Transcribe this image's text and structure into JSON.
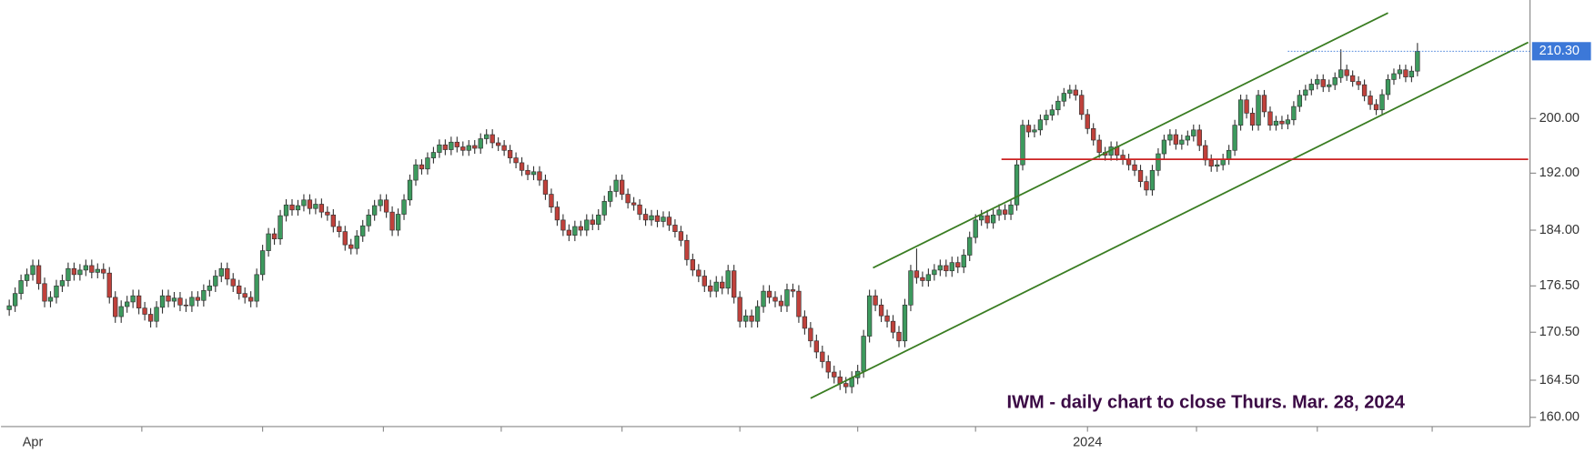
{
  "chart_data": {
    "type": "candlestick",
    "annotation": "IWM - daily chart to close Thurs. Mar. 28, 2024",
    "up_color": "#3d9a5e",
    "down_color": "#c0413b",
    "log_scale": true,
    "ylim": [
      158.9,
      218.5
    ],
    "yticks": [
      {
        "value": 160,
        "label": "160.00"
      },
      {
        "value": 164.5,
        "label": "164.50"
      },
      {
        "value": 170.5,
        "label": "170.50"
      },
      {
        "value": 176.5,
        "label": "176.50"
      },
      {
        "value": 184,
        "label": "184.00"
      },
      {
        "value": 192,
        "label": "192.00"
      },
      {
        "value": 200,
        "label": "200.00"
      }
    ],
    "last_price": {
      "value": 210.3,
      "label": "210.30",
      "from": 217,
      "color": "#3c78d8"
    },
    "xlim": [
      -1.4,
      258.1
    ],
    "xticks": [
      22.5,
      43,
      63.5,
      83.5,
      104,
      124,
      144,
      164,
      183,
      201.5,
      222,
      241.5
    ],
    "trendlines": [
      {
        "color": "#3a7d22",
        "points": [
          [
            146.6,
            178.9
          ],
          [
            234,
            216.4
          ]
        ]
      },
      {
        "color": "#3a7d22",
        "points": [
          [
            136,
            162.3
          ],
          [
            257.8,
            211.7
          ]
        ]
      },
      {
        "color": "#cc2222",
        "points": [
          [
            168.4,
            194
          ],
          [
            257.8,
            194
          ]
        ]
      }
    ],
    "categories": [
      null,
      null,
      null,
      null,
      "Apr",
      null,
      null,
      null,
      null,
      null,
      null,
      null,
      null,
      null,
      null,
      null,
      null,
      null,
      null,
      null,
      null,
      null,
      null,
      null,
      null,
      null,
      null,
      null,
      null,
      null,
      null,
      null,
      null,
      null,
      null,
      null,
      null,
      null,
      null,
      null,
      null,
      null,
      null,
      null,
      null,
      null,
      null,
      null,
      null,
      null,
      null,
      null,
      null,
      null,
      null,
      null,
      null,
      null,
      null,
      null,
      null,
      null,
      null,
      null,
      null,
      null,
      null,
      null,
      null,
      null,
      null,
      null,
      null,
      null,
      null,
      null,
      null,
      null,
      null,
      null,
      null,
      null,
      null,
      null,
      null,
      null,
      null,
      null,
      null,
      null,
      null,
      null,
      null,
      null,
      null,
      null,
      null,
      null,
      null,
      null,
      null,
      null,
      null,
      null,
      null,
      null,
      null,
      null,
      null,
      null,
      null,
      null,
      null,
      null,
      null,
      null,
      null,
      null,
      null,
      null,
      null,
      null,
      null,
      null,
      null,
      null,
      null,
      null,
      null,
      null,
      null,
      null,
      null,
      null,
      null,
      null,
      null,
      null,
      null,
      null,
      null,
      null,
      null,
      null,
      null,
      null,
      null,
      null,
      null,
      null,
      null,
      null,
      null,
      null,
      null,
      null,
      null,
      null,
      null,
      null,
      null,
      null,
      null,
      null,
      null,
      null,
      null,
      null,
      null,
      null,
      null,
      null,
      null,
      null,
      null,
      null,
      null,
      null,
      null,
      null,
      null,
      null,
      null,
      "2024",
      null,
      null,
      null,
      null,
      null,
      null,
      null,
      null,
      null,
      null,
      null,
      null,
      null,
      null,
      null,
      null,
      null,
      null,
      null,
      null,
      null,
      null,
      null,
      null,
      null,
      null,
      null,
      null,
      null,
      null,
      null,
      null,
      null,
      null,
      null,
      null,
      null,
      null,
      null,
      null,
      null,
      null,
      null,
      null,
      null,
      null,
      null,
      null,
      null,
      null,
      null,
      null,
      null,
      null,
      null,
      null
    ],
    "open": [
      173.4,
      173.9,
      175.5,
      177.2,
      178.0,
      179.2,
      176.8,
      174.5,
      175.0,
      176.5,
      177.2,
      178.8,
      178.0,
      178.6,
      179.2,
      178.3,
      178.7,
      178.2,
      175.0,
      172.5,
      173.8,
      174.4,
      175.2,
      173.6,
      172.8,
      171.9,
      173.7,
      175.2,
      174.5,
      174.9,
      174.0,
      173.9,
      175.0,
      174.6,
      175.9,
      176.5,
      177.8,
      178.8,
      177.4,
      176.5,
      175.5,
      175.0,
      174.5,
      178.0,
      181.2,
      183.5,
      182.8,
      186.0,
      187.5,
      186.8,
      187.4,
      188.2,
      187.0,
      187.6,
      186.5,
      186.1,
      184.5,
      183.8,
      182.0,
      181.5,
      183.2,
      184.6,
      186.1,
      187.4,
      188.2,
      186.5,
      184.0,
      186.2,
      188.2,
      191.0,
      193.2,
      192.6,
      194.2,
      195.0,
      196.1,
      195.4,
      196.5,
      195.8,
      195.3,
      196.0,
      195.6,
      197.0,
      197.6,
      196.4,
      196.0,
      195.3,
      194.2,
      193.5,
      192.4,
      191.8,
      192.2,
      191.0,
      189.0,
      187.2,
      185.4,
      184.0,
      183.3,
      184.5,
      184.0,
      185.4,
      184.8,
      186.1,
      188.0,
      189.4,
      191.0,
      189.0,
      187.8,
      187.5,
      186.2,
      185.4,
      186.0,
      185.2,
      185.8,
      184.7,
      183.8,
      182.6,
      180.0,
      178.6,
      177.8,
      176.5,
      175.8,
      177.0,
      176.2,
      178.5,
      175.0,
      171.9,
      172.6,
      171.9,
      173.8,
      175.8,
      175.0,
      174.5,
      173.9,
      176.0,
      175.8,
      172.5,
      171.0,
      169.4,
      168.0,
      166.8,
      165.5,
      164.9,
      164.1,
      163.7,
      164.8,
      165.6,
      170.0,
      175.2,
      174.0,
      172.6,
      171.9,
      170.5,
      169.4,
      174.0,
      178.5,
      177.6,
      177.2,
      178.0,
      178.6,
      179.2,
      178.5,
      179.6,
      179.0,
      180.6,
      183.0,
      185.4,
      186.0,
      185.0,
      186.1,
      186.8,
      186.2,
      187.5,
      193.2,
      199.0,
      198.0,
      198.3,
      199.8,
      200.5,
      201.3,
      202.6,
      203.8,
      204.3,
      203.5,
      200.6,
      198.5,
      196.8,
      195.0,
      194.6,
      195.8,
      194.6,
      194.0,
      193.2,
      192.4,
      190.8,
      189.6,
      192.4,
      194.8,
      196.8,
      197.6,
      196.2,
      196.8,
      197.4,
      198.3,
      196.0,
      193.9,
      193.0,
      193.2,
      194.0,
      195.3,
      199.0,
      202.8,
      200.8,
      199.0,
      203.5,
      201.0,
      199.0,
      199.6,
      199.2,
      199.8,
      201.8,
      203.5,
      204.3,
      205.2,
      205.9,
      204.8,
      205.1,
      206.2,
      207.4,
      206.5,
      205.6,
      205.1,
      203.4,
      202.1,
      201.3,
      203.6,
      205.9,
      206.8,
      207.4,
      206.3,
      207.2
    ],
    "high": [
      174.7,
      176.3,
      178.0,
      178.8,
      180.0,
      180.0,
      177.6,
      175.8,
      177.3,
      178.0,
      179.6,
      179.6,
      179.4,
      180.0,
      180.0,
      179.5,
      179.5,
      179.0,
      175.8,
      174.6,
      175.2,
      176.0,
      176.0,
      174.4,
      173.6,
      174.5,
      176.0,
      176.0,
      175.7,
      175.7,
      174.8,
      175.8,
      175.8,
      176.7,
      177.3,
      178.6,
      179.6,
      179.6,
      178.2,
      177.3,
      176.3,
      175.8,
      178.8,
      182.0,
      184.3,
      184.3,
      186.8,
      188.3,
      188.3,
      188.2,
      189.0,
      189.0,
      188.4,
      188.4,
      187.3,
      186.9,
      185.3,
      184.6,
      182.8,
      184.0,
      185.4,
      186.9,
      188.2,
      189.0,
      189.0,
      187.3,
      187.0,
      189.0,
      191.8,
      194.0,
      194.0,
      195.0,
      195.8,
      196.9,
      196.9,
      197.3,
      197.3,
      196.6,
      196.8,
      196.8,
      197.8,
      198.4,
      198.4,
      197.2,
      196.8,
      196.1,
      195.0,
      194.3,
      193.2,
      193.0,
      193.0,
      191.8,
      189.8,
      188.0,
      186.2,
      184.8,
      185.3,
      185.3,
      186.2,
      186.2,
      186.9,
      188.8,
      190.2,
      191.8,
      191.8,
      189.8,
      188.6,
      188.3,
      187.0,
      186.8,
      186.8,
      186.6,
      186.6,
      185.5,
      184.6,
      183.4,
      180.8,
      179.4,
      178.6,
      177.3,
      177.8,
      177.8,
      179.3,
      179.3,
      175.8,
      173.4,
      173.4,
      174.6,
      176.6,
      176.6,
      175.8,
      175.3,
      176.8,
      176.8,
      176.6,
      173.3,
      171.8,
      170.2,
      168.8,
      167.6,
      166.3,
      165.7,
      164.9,
      165.6,
      166.4,
      170.8,
      176.0,
      176.0,
      174.8,
      173.4,
      172.7,
      171.3,
      174.8,
      179.3,
      181.5,
      178.4,
      178.8,
      179.4,
      180.0,
      180.0,
      180.4,
      180.4,
      181.4,
      183.8,
      186.2,
      186.8,
      186.8,
      186.9,
      187.6,
      187.6,
      188.3,
      194.0,
      199.8,
      199.8,
      199.1,
      200.6,
      201.3,
      202.1,
      203.4,
      204.6,
      205.1,
      205.1,
      204.3,
      201.4,
      199.3,
      197.6,
      195.8,
      196.6,
      196.6,
      195.4,
      194.8,
      194.0,
      193.2,
      191.6,
      193.2,
      195.6,
      197.6,
      198.4,
      198.4,
      197.6,
      198.2,
      199.1,
      199.1,
      196.8,
      194.7,
      194.0,
      194.8,
      196.1,
      199.8,
      203.6,
      203.6,
      201.6,
      204.3,
      204.3,
      201.8,
      200.4,
      200.4,
      200.6,
      202.6,
      204.3,
      205.1,
      206.0,
      206.7,
      206.7,
      205.9,
      207.0,
      210.6,
      208.2,
      207.3,
      206.4,
      205.9,
      204.2,
      202.9,
      204.4,
      206.7,
      207.6,
      208.2,
      208.2,
      208.0,
      211.6
    ],
    "low": [
      172.6,
      173.1,
      174.7,
      176.4,
      177.2,
      176.0,
      173.7,
      173.7,
      174.2,
      175.7,
      176.4,
      177.2,
      177.2,
      177.8,
      177.5,
      177.5,
      177.4,
      174.2,
      171.7,
      171.7,
      173.0,
      173.6,
      172.8,
      172.0,
      171.1,
      171.1,
      172.9,
      173.7,
      173.7,
      173.2,
      173.1,
      173.1,
      173.8,
      173.8,
      175.1,
      175.7,
      177.0,
      176.6,
      175.7,
      174.7,
      174.2,
      173.7,
      173.7,
      177.2,
      180.4,
      182.0,
      182.0,
      185.2,
      186.0,
      186.0,
      186.6,
      186.2,
      186.2,
      185.7,
      185.3,
      183.7,
      183.0,
      181.2,
      180.7,
      180.7,
      182.4,
      183.8,
      185.3,
      186.6,
      185.7,
      183.2,
      183.2,
      185.4,
      187.4,
      190.2,
      191.8,
      191.8,
      193.4,
      194.2,
      194.6,
      194.6,
      195.0,
      194.5,
      194.5,
      194.8,
      194.8,
      196.2,
      195.6,
      195.2,
      194.5,
      193.4,
      192.7,
      191.6,
      191.0,
      191.0,
      190.2,
      188.2,
      186.4,
      184.6,
      183.2,
      182.5,
      182.5,
      183.2,
      183.2,
      184.0,
      184.0,
      185.3,
      187.2,
      188.6,
      188.2,
      187.0,
      186.7,
      185.4,
      184.6,
      184.6,
      184.4,
      184.4,
      183.9,
      183.0,
      181.8,
      179.2,
      177.8,
      177.0,
      175.7,
      175.0,
      175.0,
      175.4,
      175.4,
      174.2,
      171.1,
      171.1,
      171.1,
      171.1,
      173.0,
      174.2,
      173.7,
      173.1,
      173.1,
      175.0,
      171.7,
      170.2,
      168.6,
      167.2,
      166.0,
      164.7,
      164.1,
      163.3,
      162.9,
      162.9,
      164.0,
      164.8,
      169.2,
      173.2,
      171.8,
      171.1,
      169.7,
      168.6,
      168.6,
      173.2,
      176.8,
      176.4,
      176.4,
      177.2,
      177.8,
      177.7,
      177.7,
      178.2,
      178.2,
      179.8,
      182.2,
      184.6,
      184.2,
      184.2,
      185.3,
      185.4,
      185.4,
      186.7,
      192.4,
      197.2,
      197.2,
      197.5,
      199.0,
      199.7,
      200.5,
      201.8,
      203.0,
      202.7,
      199.8,
      197.7,
      196.0,
      194.2,
      193.8,
      193.8,
      193.8,
      193.2,
      192.4,
      191.6,
      190.0,
      188.8,
      188.8,
      191.6,
      194.0,
      196.0,
      195.4,
      195.4,
      196.0,
      196.6,
      195.2,
      193.1,
      192.2,
      192.2,
      192.4,
      193.2,
      194.5,
      198.2,
      200.0,
      198.2,
      198.2,
      200.2,
      198.2,
      198.2,
      198.4,
      198.4,
      199.0,
      201.0,
      202.7,
      203.5,
      204.4,
      204.0,
      204.0,
      204.3,
      205.4,
      205.7,
      204.8,
      204.3,
      202.6,
      201.3,
      200.5,
      200.5,
      202.8,
      205.1,
      206.0,
      205.5,
      205.5,
      206.4
    ],
    "close": [
      173.9,
      175.5,
      177.2,
      178.0,
      179.2,
      176.8,
      174.5,
      175.0,
      176.5,
      177.2,
      178.8,
      178.0,
      178.6,
      179.2,
      178.3,
      178.7,
      178.2,
      175.0,
      172.5,
      173.8,
      174.4,
      175.2,
      173.6,
      172.8,
      171.9,
      173.7,
      175.2,
      174.5,
      174.9,
      174.0,
      173.9,
      175.0,
      174.6,
      175.9,
      176.5,
      177.8,
      178.8,
      177.4,
      176.5,
      175.5,
      175.0,
      174.5,
      178.0,
      181.2,
      183.5,
      182.8,
      186.0,
      187.5,
      186.8,
      187.4,
      188.2,
      187.0,
      187.6,
      186.5,
      186.1,
      184.5,
      183.8,
      182.0,
      181.5,
      183.2,
      184.6,
      186.1,
      187.4,
      188.2,
      186.5,
      184.0,
      186.2,
      188.2,
      191.0,
      193.2,
      192.6,
      194.2,
      195.0,
      196.1,
      195.4,
      196.5,
      195.8,
      195.3,
      196.0,
      195.6,
      197.0,
      197.6,
      196.4,
      196.0,
      195.3,
      194.2,
      193.5,
      192.4,
      191.8,
      192.2,
      191.0,
      189.0,
      187.2,
      185.4,
      184.0,
      183.3,
      184.5,
      184.0,
      185.4,
      184.8,
      186.1,
      188.0,
      189.4,
      191.0,
      189.0,
      187.8,
      187.5,
      186.2,
      185.4,
      186.0,
      185.2,
      185.8,
      184.7,
      183.8,
      182.6,
      180.0,
      178.6,
      177.8,
      176.5,
      175.8,
      177.0,
      176.2,
      178.5,
      175.0,
      171.9,
      172.6,
      171.9,
      173.8,
      175.8,
      175.0,
      174.5,
      173.9,
      176.0,
      175.8,
      172.5,
      171.0,
      169.4,
      168.0,
      166.8,
      165.5,
      164.9,
      164.1,
      163.7,
      164.8,
      165.6,
      170.0,
      175.2,
      174.0,
      172.6,
      171.9,
      170.5,
      169.4,
      174.0,
      178.5,
      177.6,
      177.2,
      178.0,
      178.6,
      179.2,
      178.5,
      179.6,
      179.0,
      180.6,
      183.0,
      185.4,
      186.0,
      185.0,
      186.1,
      186.8,
      186.2,
      187.5,
      193.2,
      199.0,
      198.0,
      198.3,
      199.8,
      200.5,
      201.3,
      202.6,
      203.8,
      204.3,
      203.5,
      200.6,
      198.5,
      196.8,
      195.0,
      194.6,
      195.8,
      194.6,
      194.0,
      193.2,
      192.4,
      190.8,
      189.6,
      192.4,
      194.8,
      196.8,
      197.6,
      196.2,
      196.8,
      197.4,
      198.3,
      196.0,
      193.9,
      193.0,
      193.2,
      194.0,
      195.3,
      199.0,
      202.8,
      200.8,
      199.0,
      203.5,
      201.0,
      199.0,
      199.6,
      199.2,
      199.8,
      201.8,
      203.5,
      204.3,
      205.2,
      205.9,
      204.8,
      205.1,
      206.2,
      207.4,
      206.5,
      205.6,
      205.1,
      203.4,
      202.1,
      201.3,
      203.6,
      205.9,
      206.8,
      207.4,
      206.3,
      207.2,
      210.3
    ]
  }
}
